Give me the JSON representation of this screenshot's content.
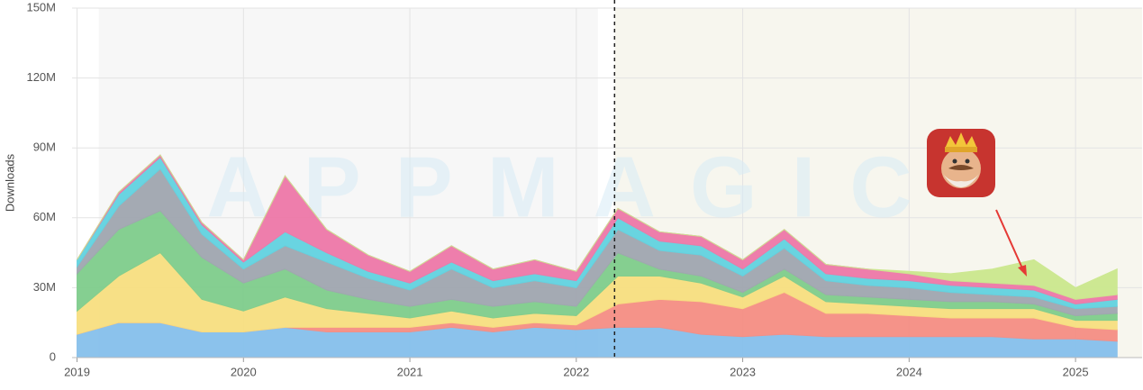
{
  "chart_data": {
    "type": "stacked_area",
    "ylabel": "Downloads",
    "watermark": "APPMAGIC",
    "x": [
      2019.0,
      2019.25,
      2019.5,
      2019.75,
      2020.0,
      2020.25,
      2020.5,
      2020.75,
      2021.0,
      2021.25,
      2021.5,
      2021.75,
      2022.0,
      2022.25,
      2022.5,
      2022.75,
      2023.0,
      2023.25,
      2023.5,
      2023.75,
      2024.0,
      2024.25,
      2024.5,
      2024.75,
      2025.0,
      2025.25
    ],
    "xlim": [
      2018.97,
      2025.4
    ],
    "xticks": [
      2019,
      2020,
      2021,
      2022,
      2023,
      2024,
      2025
    ],
    "ylim": [
      0,
      150
    ],
    "yticks": [
      0,
      {
        "value": 30,
        "label": "30M"
      },
      {
        "value": 60,
        "label": "60M"
      },
      {
        "value": 90,
        "label": "90M"
      },
      {
        "value": 120,
        "label": "120M"
      },
      {
        "value": 150,
        "label": "150M"
      }
    ],
    "grid": true,
    "marker_x": 2022.23,
    "shaded_regions": [
      {
        "from": 2019.13,
        "to": 2022.13,
        "color": "#f7f7f7"
      },
      {
        "from": 2022.23,
        "to": 2025.4,
        "color": "#f7f6ee"
      }
    ],
    "series": [
      {
        "color": "#86c0ec",
        "values": [
          10,
          15,
          15,
          11,
          11,
          13,
          11,
          11,
          11,
          13,
          11,
          13,
          12,
          13,
          13,
          10,
          9,
          10,
          9,
          9,
          9,
          9,
          9,
          8,
          8,
          7
        ]
      },
      {
        "color": "#f58e84",
        "values": [
          0,
          0,
          0,
          0,
          0,
          0,
          2,
          2,
          2,
          2,
          2,
          2,
          2,
          10,
          12,
          14,
          12,
          18,
          10,
          10,
          9,
          8,
          8,
          9,
          5,
          5
        ]
      },
      {
        "color": "#f8df80",
        "values": [
          10,
          20,
          30,
          14,
          9,
          13,
          8,
          6,
          4,
          5,
          4,
          4,
          4,
          12,
          10,
          8,
          5,
          7,
          5,
          4,
          4,
          4,
          4,
          4,
          3,
          4
        ]
      },
      {
        "color": "#7fcd8c",
        "values": [
          16,
          20,
          18,
          18,
          12,
          12,
          8,
          6,
          5,
          5,
          5,
          5,
          4,
          10,
          3,
          3,
          2,
          3,
          3,
          3,
          3,
          3,
          3,
          2,
          2,
          3
        ]
      },
      {
        "color": "#a0a6b0",
        "values": [
          3,
          10,
          18,
          10,
          6,
          10,
          12,
          9,
          7,
          13,
          8,
          9,
          8,
          10,
          8,
          9,
          7,
          9,
          6,
          5,
          5,
          4,
          3,
          3,
          3,
          3
        ]
      },
      {
        "color": "#62d3e0",
        "values": [
          3,
          5,
          5,
          4,
          3,
          6,
          4,
          3,
          3,
          3,
          3,
          3,
          3,
          5,
          4,
          4,
          3,
          4,
          3,
          3,
          3,
          3,
          3,
          3,
          2,
          3
        ]
      },
      {
        "color": "#ee78a8",
        "values": [
          0,
          1,
          1,
          1,
          1,
          24,
          10,
          7,
          5,
          7,
          5,
          6,
          4,
          4,
          4,
          4,
          4,
          4,
          4,
          4,
          3,
          2,
          2,
          2,
          2,
          2
        ]
      },
      {
        "color": "#cbe88e",
        "values": [
          0,
          0,
          0,
          0,
          0,
          0,
          0,
          0,
          0,
          0,
          0,
          0,
          0,
          0,
          0,
          0,
          0,
          0,
          0,
          0,
          1,
          3,
          6,
          11,
          5,
          11
        ]
      }
    ]
  }
}
